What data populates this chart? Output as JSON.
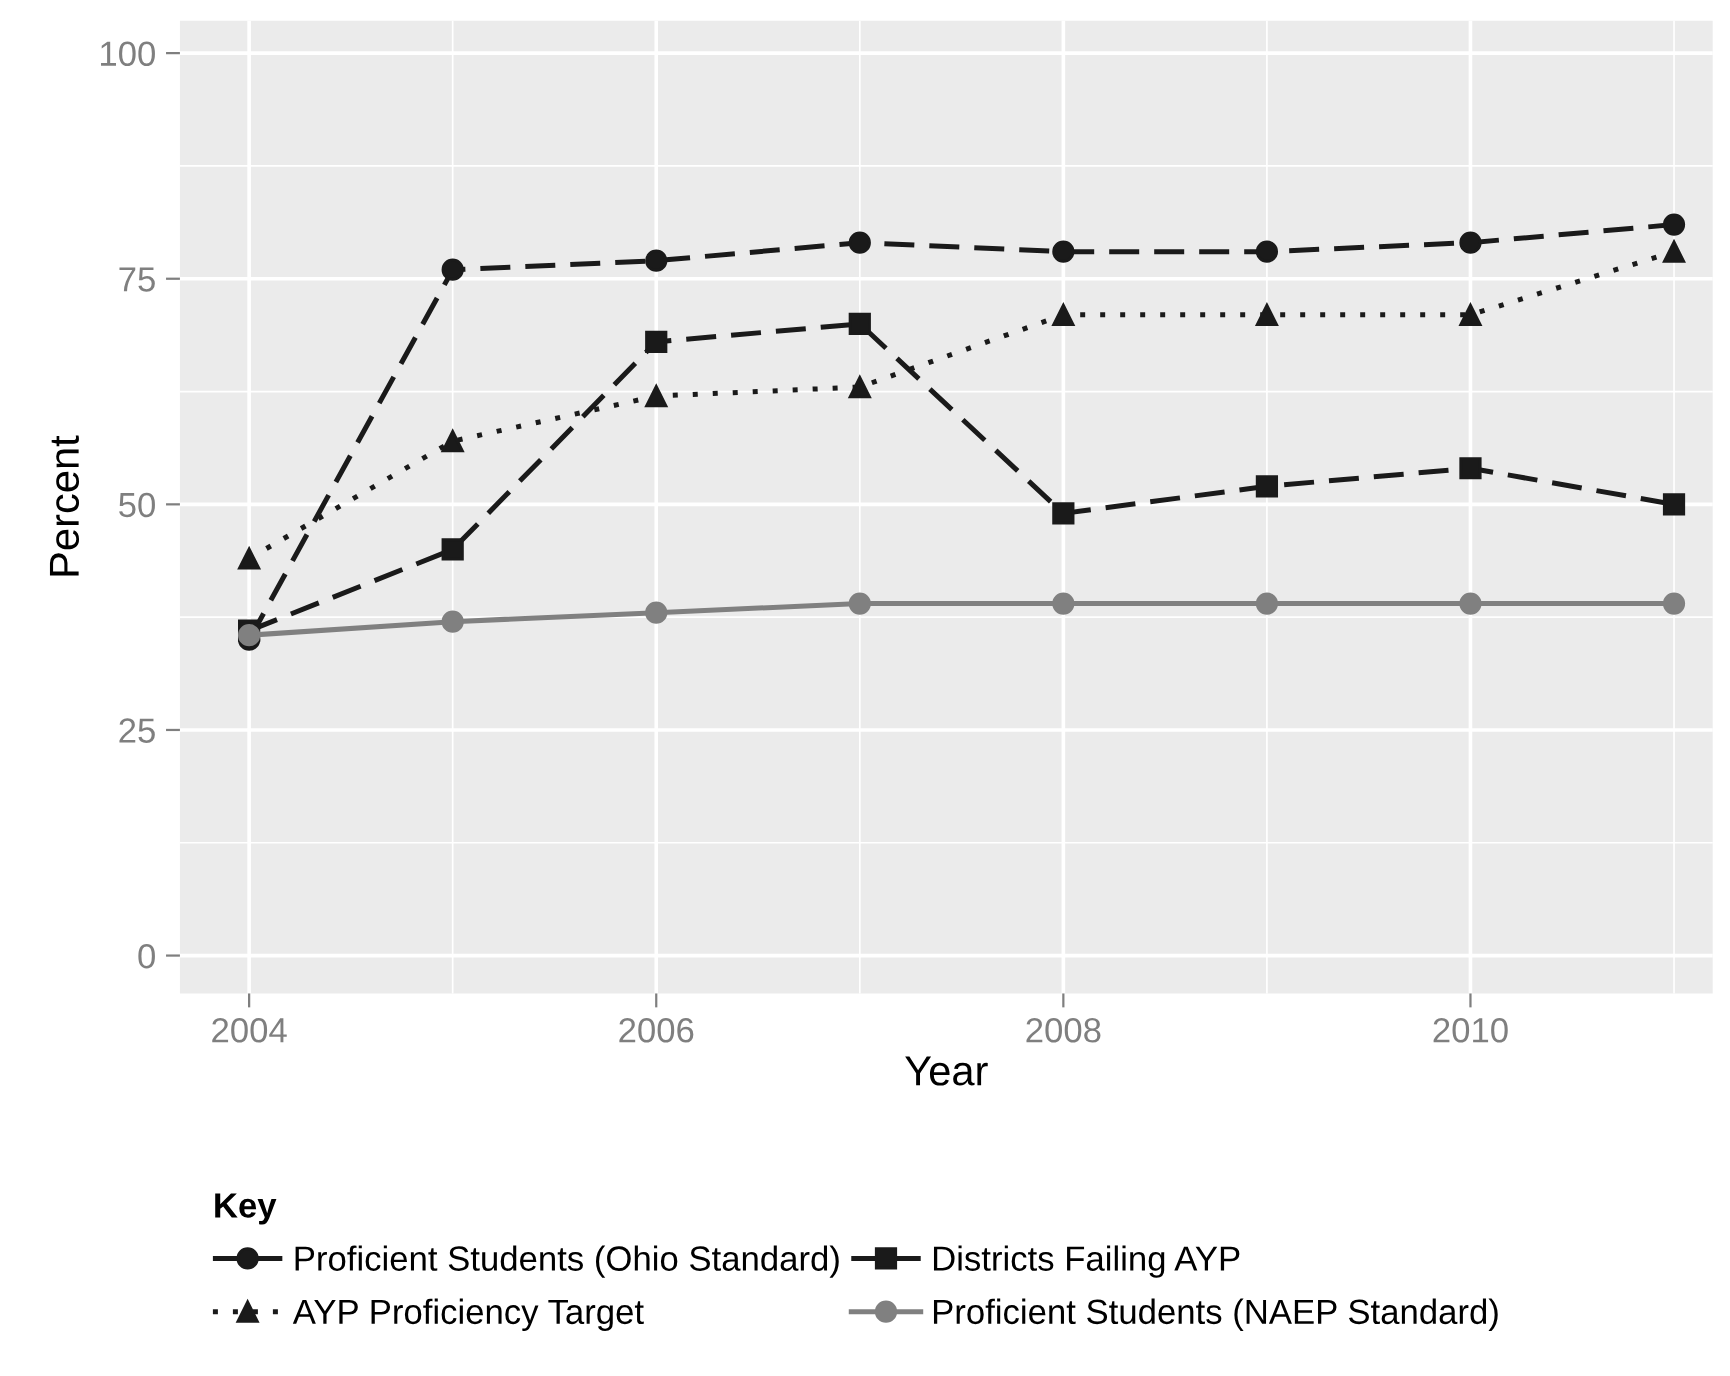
{
  "chart_data": {
    "type": "line",
    "xlabel": "Year",
    "ylabel": "Percent",
    "legend_title": "Key",
    "x": [
      2004,
      2005,
      2006,
      2007,
      2008,
      2009,
      2010,
      2011
    ],
    "series": [
      {
        "name": "Proficient Students (Ohio Standard)",
        "color": "#1a1a1a",
        "marker": "circle",
        "line_style": "dashed",
        "values": [
          35,
          76,
          77,
          79,
          78,
          78,
          79,
          81
        ]
      },
      {
        "name": "Districts Failing AYP",
        "color": "#1a1a1a",
        "marker": "square",
        "line_style": "dashed",
        "values": [
          36,
          45,
          68,
          70,
          49,
          52,
          54,
          50
        ]
      },
      {
        "name": "AYP Proficiency Target",
        "color": "#1a1a1a",
        "marker": "triangle",
        "line_style": "dotted",
        "values": [
          44,
          57,
          62,
          63,
          71,
          71,
          71,
          78
        ]
      },
      {
        "name": "Proficient Students (NAEP Standard)",
        "color": "#808080",
        "marker": "circle",
        "line_style": "solid",
        "values": [
          35.5,
          37,
          38,
          39,
          39,
          39,
          39,
          39
        ]
      }
    ],
    "xlim": [
      2003.66,
      2011.19
    ],
    "xticks": [
      2004,
      2006,
      2008,
      2010
    ],
    "ylim": [
      -4.2,
      103.6
    ],
    "yticks": [
      0,
      25,
      50,
      75,
      100
    ],
    "grid": true,
    "legend": "bottom"
  }
}
